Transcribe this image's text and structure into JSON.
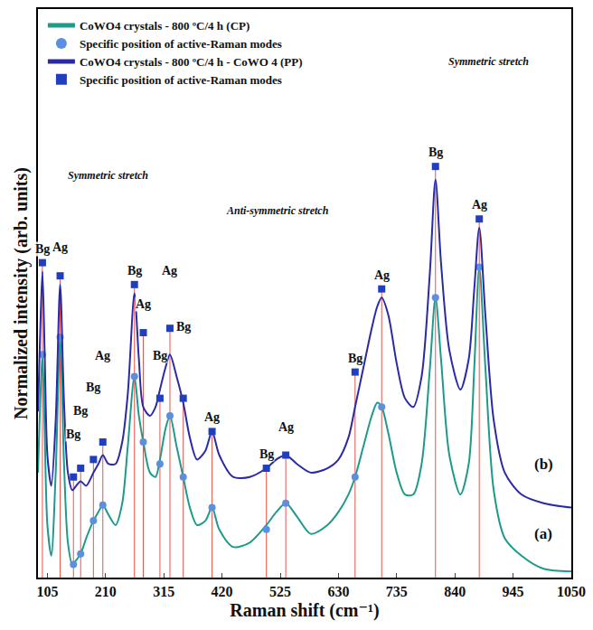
{
  "chart_data": {
    "type": "line",
    "x_label": "Raman shift (cm⁻¹)",
    "y_label": "Normalized intensity (arb. units)",
    "xlim": [
      88,
      1050
    ],
    "xticks": [
      105,
      210,
      315,
      420,
      525,
      630,
      735,
      840,
      945,
      1050
    ],
    "ylim": [
      0,
      6.5
    ],
    "tick_labels": "x",
    "grid": false,
    "legend": "upper left",
    "x": [
      88,
      92,
      96,
      100,
      105,
      112,
      120,
      128,
      135,
      142,
      150,
      157,
      165,
      175,
      188,
      197,
      205,
      215,
      228,
      240,
      250,
      262,
      270,
      278,
      290,
      300,
      308,
      318,
      326,
      338,
      350,
      362,
      375,
      390,
      402,
      415,
      440,
      470,
      500,
      518,
      535,
      555,
      580,
      610,
      630,
      648,
      660,
      675,
      690,
      700,
      708,
      720,
      735,
      750,
      765,
      780,
      795,
      805,
      815,
      830,
      850,
      865,
      875,
      884,
      895,
      910,
      930,
      960,
      1000,
      1050
    ],
    "series": [
      {
        "name": "CoWO4 crystals - 800 ºC/4 h (CP)",
        "type": "line",
        "color": "#1e9a8a",
        "line_style": "solid",
        "values": [
          1.2,
          2.0,
          2.55,
          1.7,
          0.6,
          0.25,
          1.2,
          2.75,
          1.3,
          0.4,
          0.15,
          0.2,
          0.27,
          0.45,
          0.65,
          0.75,
          0.83,
          0.72,
          0.6,
          0.85,
          1.5,
          2.3,
          1.85,
          1.55,
          1.2,
          1.15,
          1.35,
          1.7,
          1.85,
          1.5,
          1.15,
          0.8,
          0.6,
          0.65,
          0.8,
          0.55,
          0.35,
          0.4,
          0.6,
          0.75,
          0.85,
          0.7,
          0.5,
          0.6,
          0.75,
          0.95,
          1.15,
          1.5,
          1.85,
          2.0,
          1.95,
          1.65,
          1.2,
          0.95,
          0.95,
          1.3,
          2.4,
          3.2,
          2.5,
          1.4,
          0.95,
          1.3,
          2.4,
          3.55,
          2.4,
          1.0,
          0.45,
          0.25,
          0.1,
          0.07
        ]
      },
      {
        "name": "Specific position of active-Raman modes",
        "type": "scatter",
        "marker": "circle",
        "color": "#5b8fe0",
        "x": [
          96,
          128,
          152,
          165,
          188,
          205,
          262,
          278,
          308,
          326,
          350,
          402,
          500,
          535,
          660,
          708,
          805,
          884
        ],
        "values": [
          2.55,
          2.75,
          0.15,
          0.27,
          0.65,
          0.83,
          2.3,
          1.55,
          1.3,
          1.85,
          1.15,
          0.8,
          0.55,
          0.85,
          1.15,
          1.95,
          3.2,
          3.55
        ]
      },
      {
        "name": "CoWO4 crystals - 800 ºC/4 h - CoWO 4 (PP)",
        "type": "line",
        "color": "#2a2aa8",
        "line_style": "solid",
        "values": [
          1.9,
          2.8,
          3.5,
          2.6,
          1.4,
          1.05,
          1.8,
          3.35,
          2.0,
          1.2,
          1.0,
          1.05,
          1.1,
          1.05,
          1.2,
          1.3,
          1.4,
          1.3,
          1.3,
          1.55,
          2.1,
          3.25,
          2.5,
          1.95,
          1.85,
          1.95,
          2.15,
          2.4,
          2.55,
          2.3,
          2.0,
          1.6,
          1.35,
          1.45,
          1.67,
          1.4,
          1.15,
          1.15,
          1.25,
          1.35,
          1.4,
          1.3,
          1.2,
          1.25,
          1.35,
          1.6,
          1.95,
          2.4,
          2.85,
          3.1,
          3.2,
          3.0,
          2.45,
          2.05,
          1.95,
          2.3,
          3.5,
          4.55,
          3.6,
          2.6,
          2.15,
          2.5,
          3.3,
          4.0,
          3.0,
          1.8,
          1.2,
          0.95,
          0.85,
          0.8
        ]
      },
      {
        "name": "Specific position of active-Raman modes",
        "type": "scatter",
        "marker": "square",
        "color": "#1f3fbf",
        "x": [
          96,
          128,
          152,
          165,
          188,
          205,
          262,
          278,
          308,
          326,
          350,
          402,
          500,
          535,
          660,
          708,
          805,
          884
        ],
        "values": [
          3.6,
          3.45,
          1.15,
          1.25,
          1.35,
          1.55,
          3.35,
          2.8,
          2.05,
          2.85,
          2.05,
          1.67,
          1.25,
          1.4,
          2.35,
          3.3,
          4.7,
          4.1
        ],
        "labels": [
          "Bg",
          "Ag",
          "Bg",
          "Bg",
          "Bg",
          "Ag",
          "Bg",
          "Ag",
          "Bg",
          "Ag",
          "Bg",
          "Ag",
          "Bg",
          "Ag",
          "Bg",
          "Ag",
          "Bg",
          "Ag"
        ]
      }
    ],
    "annotations": [
      {
        "text": "(a)",
        "x": 1000,
        "y": 0.5
      },
      {
        "text": "(b)",
        "x": 1000,
        "y": 1.3
      },
      {
        "text": "Symmetric stretch",
        "x": 215,
        "y": 4.6
      },
      {
        "text": "Anti-symmetric stretch",
        "x": 520,
        "y": 4.2
      },
      {
        "text": "Symmetric stretch",
        "x": 900,
        "y": 5.9
      }
    ]
  }
}
